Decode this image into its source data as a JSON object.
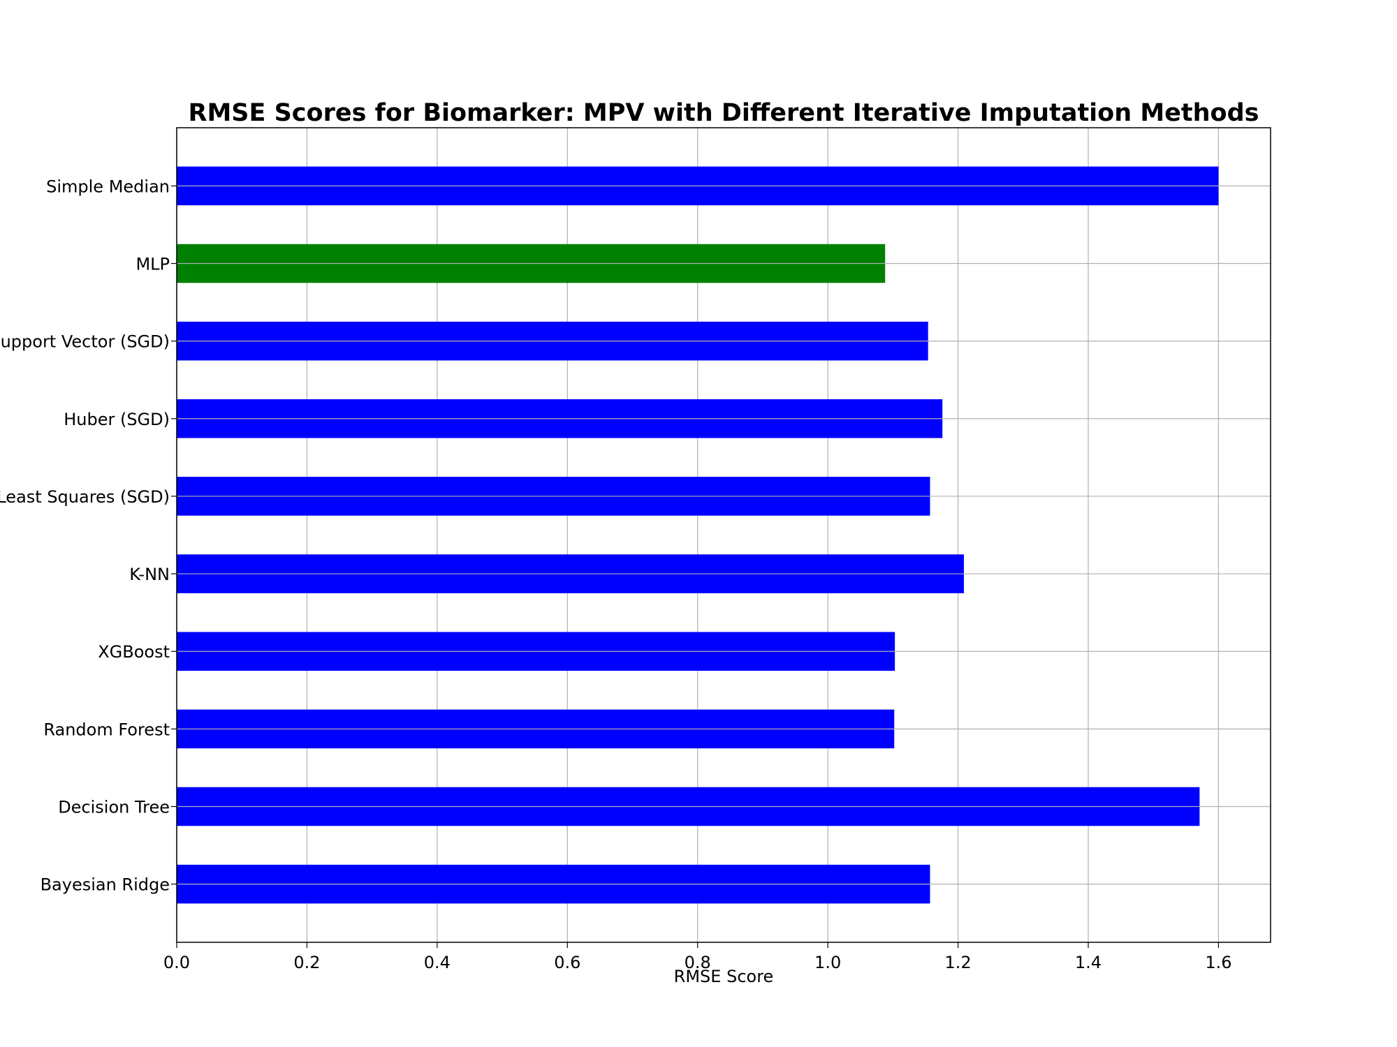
{
  "chart_data": {
    "type": "bar",
    "orientation": "horizontal",
    "title": "RMSE Scores for Biomarker: MPV with Different Iterative Imputation Methods",
    "xlabel": "RMSE Score",
    "ylabel": "",
    "xlim": [
      0,
      1.68
    ],
    "x_ticks": [
      "0.0",
      "0.2",
      "0.4",
      "0.6",
      "0.8",
      "1.0",
      "1.2",
      "1.4",
      "1.6"
    ],
    "grid": true,
    "categories": [
      "Bayesian Ridge",
      "Decision Tree",
      "Random Forest",
      "XGBoost",
      "K-NN",
      "Least Squares (SGD)",
      "Huber (SGD)",
      "Support Vector (SGD)",
      "MLP",
      "Simple Median"
    ],
    "values": [
      1.157,
      1.571,
      1.102,
      1.103,
      1.209,
      1.157,
      1.176,
      1.154,
      1.088,
      1.6
    ],
    "bar_colors": [
      "#0000ff",
      "#0000ff",
      "#0000ff",
      "#0000ff",
      "#0000ff",
      "#0000ff",
      "#0000ff",
      "#0000ff",
      "#008000",
      "#0000ff"
    ],
    "highlight": "MLP"
  }
}
